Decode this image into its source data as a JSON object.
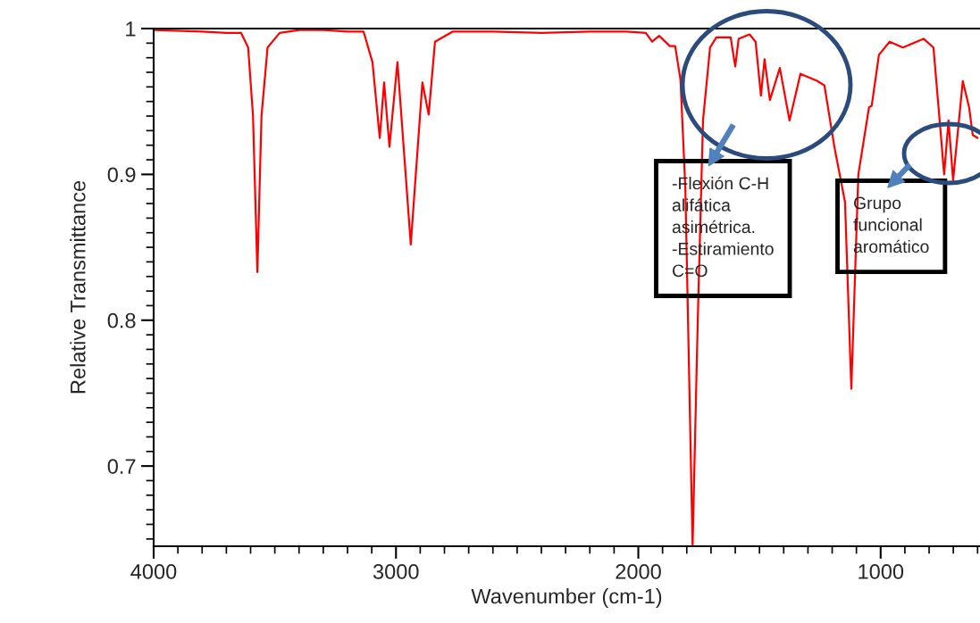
{
  "chart_data": {
    "type": "line",
    "xlabel": "Wavenumber (cm-1)",
    "ylabel": "Relative Transmittance",
    "xlim": [
      4000,
      590
    ],
    "ylim": [
      0.645,
      1.0
    ],
    "xticks": [
      4000,
      {
        "value": 3900,
        "label": null
      },
      {
        "value": 3800,
        "label": null
      },
      {
        "value": 3700,
        "label": null
      },
      {
        "value": 3600,
        "label": null
      },
      {
        "value": 3500,
        "label": null
      },
      {
        "value": 3400,
        "label": null
      },
      {
        "value": 3300,
        "label": null
      },
      {
        "value": 3200,
        "label": null
      },
      {
        "value": 3100,
        "label": null
      },
      3000,
      {
        "value": 2900,
        "label": null
      },
      {
        "value": 2800,
        "label": null
      },
      {
        "value": 2700,
        "label": null
      },
      {
        "value": 2600,
        "label": null
      },
      {
        "value": 2500,
        "label": null
      },
      {
        "value": 2400,
        "label": null
      },
      {
        "value": 2300,
        "label": null
      },
      {
        "value": 2200,
        "label": null
      },
      {
        "value": 2100,
        "label": null
      },
      2000,
      {
        "value": 1900,
        "label": null
      },
      {
        "value": 1800,
        "label": null
      },
      {
        "value": 1700,
        "label": null
      },
      {
        "value": 1600,
        "label": null
      },
      {
        "value": 1500,
        "label": null
      },
      {
        "value": 1400,
        "label": null
      },
      {
        "value": 1300,
        "label": null
      },
      {
        "value": 1200,
        "label": null
      },
      {
        "value": 1100,
        "label": null
      },
      1000,
      {
        "value": 900,
        "label": null
      },
      {
        "value": 800,
        "label": null
      },
      {
        "value": 700,
        "label": null
      },
      {
        "value": 600,
        "label": null
      }
    ],
    "yticks": [
      {
        "value": 0.65,
        "label": null
      },
      {
        "value": 0.66,
        "label": null
      },
      {
        "value": 0.67,
        "label": null
      },
      {
        "value": 0.68,
        "label": null
      },
      {
        "value": 0.69,
        "label": null
      },
      0.7,
      {
        "value": 0.71,
        "label": null
      },
      {
        "value": 0.72,
        "label": null
      },
      {
        "value": 0.73,
        "label": null
      },
      {
        "value": 0.74,
        "label": null
      },
      {
        "value": 0.75,
        "label": null
      },
      {
        "value": 0.76,
        "label": null
      },
      {
        "value": 0.77,
        "label": null
      },
      {
        "value": 0.78,
        "label": null
      },
      {
        "value": 0.79,
        "label": null
      },
      0.8,
      {
        "value": 0.81,
        "label": null
      },
      {
        "value": 0.82,
        "label": null
      },
      {
        "value": 0.83,
        "label": null
      },
      {
        "value": 0.84,
        "label": null
      },
      {
        "value": 0.85,
        "label": null
      },
      {
        "value": 0.86,
        "label": null
      },
      {
        "value": 0.87,
        "label": null
      },
      {
        "value": 0.88,
        "label": null
      },
      {
        "value": 0.89,
        "label": null
      },
      0.9,
      {
        "value": 0.91,
        "label": null
      },
      {
        "value": 0.92,
        "label": null
      },
      {
        "value": 0.93,
        "label": null
      },
      {
        "value": 0.94,
        "label": null
      },
      {
        "value": 0.95,
        "label": null
      },
      {
        "value": 0.96,
        "label": null
      },
      {
        "value": 0.97,
        "label": null
      },
      {
        "value": 0.98,
        "label": null
      },
      {
        "value": 0.99,
        "label": null
      },
      1
    ],
    "grid": false,
    "legend": false,
    "series": [
      {
        "color": "#ff0000",
        "x": [
          4000,
          3800,
          3700,
          3639,
          3610,
          3590,
          3572,
          3555,
          3530,
          3480,
          3400,
          3300,
          3200,
          3134,
          3097,
          3067,
          3049,
          3027,
          2994,
          2939,
          2891,
          2865,
          2839,
          2765,
          2600,
          2400,
          2200,
          2050,
          1969,
          1943,
          1914,
          1870,
          1848,
          1826,
          1806,
          1776,
          1755,
          1733,
          1704,
          1678,
          1619,
          1600,
          1586,
          1541,
          1516,
          1494,
          1479,
          1457,
          1416,
          1376,
          1331,
          1261,
          1232,
          1191,
          1147,
          1121,
          1092,
          1048,
          1037,
          1007,
          963,
          908,
          823,
          782,
          753,
          738,
          720,
          701,
          661,
          635,
          620,
          600
        ],
        "values": [
          0.999,
          0.998,
          0.997,
          0.997,
          0.987,
          0.94,
          0.833,
          0.94,
          0.987,
          0.997,
          0.999,
          0.999,
          0.998,
          0.998,
          0.977,
          0.925,
          0.963,
          0.919,
          0.977,
          0.852,
          0.963,
          0.941,
          0.991,
          0.998,
          0.998,
          0.997,
          0.998,
          0.998,
          0.997,
          0.991,
          0.995,
          0.988,
          0.988,
          0.965,
          0.891,
          0.645,
          0.798,
          0.937,
          0.987,
          0.994,
          0.994,
          0.974,
          0.993,
          0.996,
          0.991,
          0.954,
          0.979,
          0.951,
          0.973,
          0.937,
          0.969,
          0.964,
          0.961,
          0.919,
          0.881,
          0.753,
          0.9,
          0.946,
          0.947,
          0.982,
          0.991,
          0.987,
          0.993,
          0.987,
          0.93,
          0.9,
          0.937,
          0.896,
          0.964,
          0.946,
          0.927,
          0.925
        ]
      }
    ],
    "annotations": [
      "-Flexión C-H\nalifática\nasimétrica.\n-Estiramiento\nC=O",
      "Grupo\nfuncional\naromático"
    ]
  }
}
